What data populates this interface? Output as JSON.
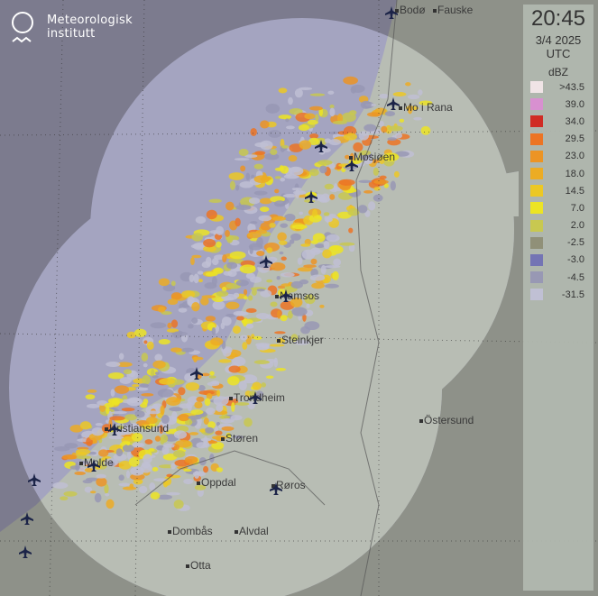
{
  "logo": {
    "line1": "Meteorologisk",
    "line2": "institutt"
  },
  "legend": {
    "time": "20:45",
    "date": "3/4 2025",
    "timezone": "UTC",
    "unit": "dBZ",
    "items": [
      {
        "label": ">43.5",
        "color": "#f0e4e6"
      },
      {
        "label": "39.0",
        "color": "#d890d0"
      },
      {
        "label": "34.0",
        "color": "#d02c24"
      },
      {
        "label": "29.5",
        "color": "#ec7424"
      },
      {
        "label": "23.0",
        "color": "#ec9424"
      },
      {
        "label": "18.0",
        "color": "#ecac24"
      },
      {
        "label": "14.5",
        "color": "#ecc824"
      },
      {
        "label": "7.0",
        "color": "#ece424"
      },
      {
        "label": "2.0",
        "color": "#c8c850"
      },
      {
        "label": "-2.5",
        "color": "#909078"
      },
      {
        "label": "-3.0",
        "color": "#7474b4"
      },
      {
        "label": "-4.5",
        "color": "#9898b4"
      },
      {
        "label": "-31.5",
        "color": "#c0c0d4"
      }
    ]
  },
  "cities": [
    {
      "name": "Bodø"
    },
    {
      "name": "Fauske"
    },
    {
      "name": "Mo i Rana"
    },
    {
      "name": "Mosjøen"
    },
    {
      "name": "Namsos"
    },
    {
      "name": "Steinkjer"
    },
    {
      "name": "Trondheim"
    },
    {
      "name": "Kristiansund"
    },
    {
      "name": "Molde"
    },
    {
      "name": "Støren"
    },
    {
      "name": "Oppdal"
    },
    {
      "name": "Røros"
    },
    {
      "name": "Dombås"
    },
    {
      "name": "Alvdal"
    },
    {
      "name": "Otta"
    },
    {
      "name": "Östersund"
    }
  ],
  "colors": {
    "sea_outside": "#7c7b8e",
    "land_outside": "#8e9189",
    "sea_coverage": "#a4a4c0",
    "land_coverage": "#b8bdb4"
  }
}
